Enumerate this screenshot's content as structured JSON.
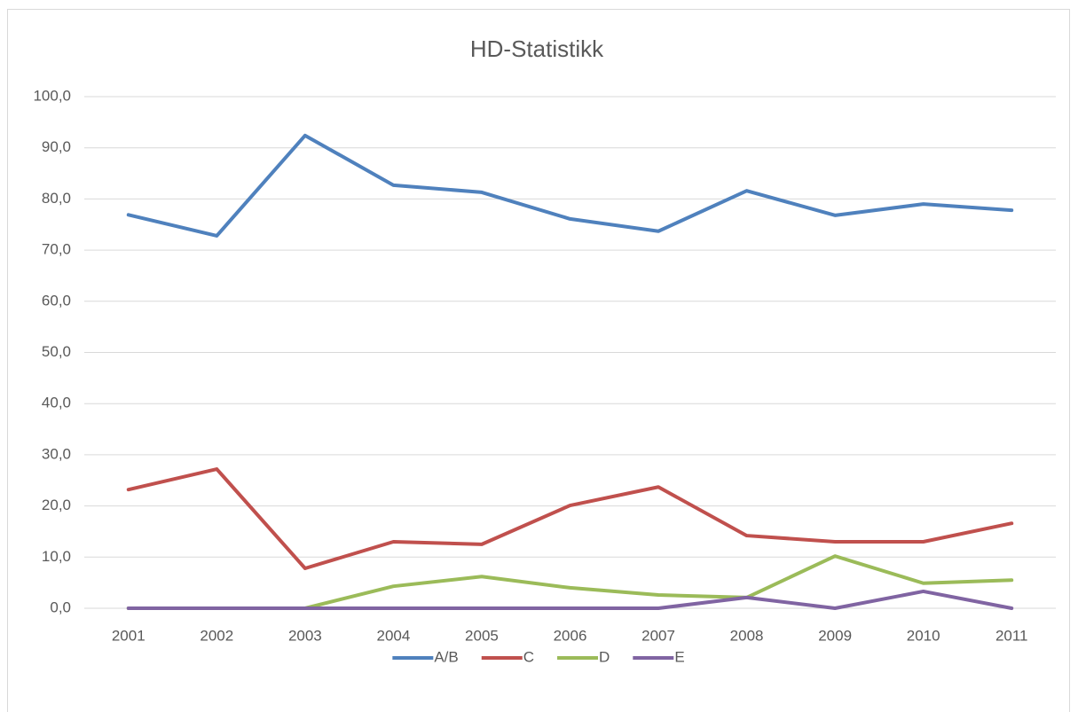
{
  "chart_data": {
    "type": "line",
    "title": "HD-Statistikk",
    "categories": [
      "2001",
      "2002",
      "2003",
      "2004",
      "2005",
      "2006",
      "2007",
      "2008",
      "2009",
      "2010",
      "2011"
    ],
    "series": [
      {
        "name": "A/B",
        "color": "#4f81bd",
        "values": [
          76.9,
          72.8,
          92.4,
          82.7,
          81.3,
          76.1,
          73.7,
          81.6,
          76.8,
          79.0,
          77.8
        ]
      },
      {
        "name": "C",
        "color": "#c0504d",
        "values": [
          23.2,
          27.2,
          7.8,
          13.0,
          12.5,
          20.1,
          23.7,
          14.2,
          13.0,
          13.0,
          16.6
        ]
      },
      {
        "name": "D",
        "color": "#9bbb59",
        "values": [
          0,
          0,
          0,
          4.3,
          6.2,
          4.0,
          2.6,
          2.1,
          10.2,
          4.9,
          5.5
        ]
      },
      {
        "name": "E",
        "color": "#8064a2",
        "values": [
          0,
          0,
          0,
          0,
          0,
          0,
          0,
          2.1,
          0,
          3.3,
          0
        ]
      }
    ],
    "ylim": [
      0,
      100
    ],
    "yticks": [
      {
        "value": 0,
        "label": "0,0"
      },
      {
        "value": 10,
        "label": "10,0"
      },
      {
        "value": 20,
        "label": "20,0"
      },
      {
        "value": 30,
        "label": "30,0"
      },
      {
        "value": 40,
        "label": "40,0"
      },
      {
        "value": 50,
        "label": "50,0"
      },
      {
        "value": 60,
        "label": "60,0"
      },
      {
        "value": 70,
        "label": "70,0"
      },
      {
        "value": 80,
        "label": "80,0"
      },
      {
        "value": 90,
        "label": "90,0"
      },
      {
        "value": 100,
        "label": "100,0"
      }
    ],
    "grid": true,
    "legend": "bottom"
  }
}
